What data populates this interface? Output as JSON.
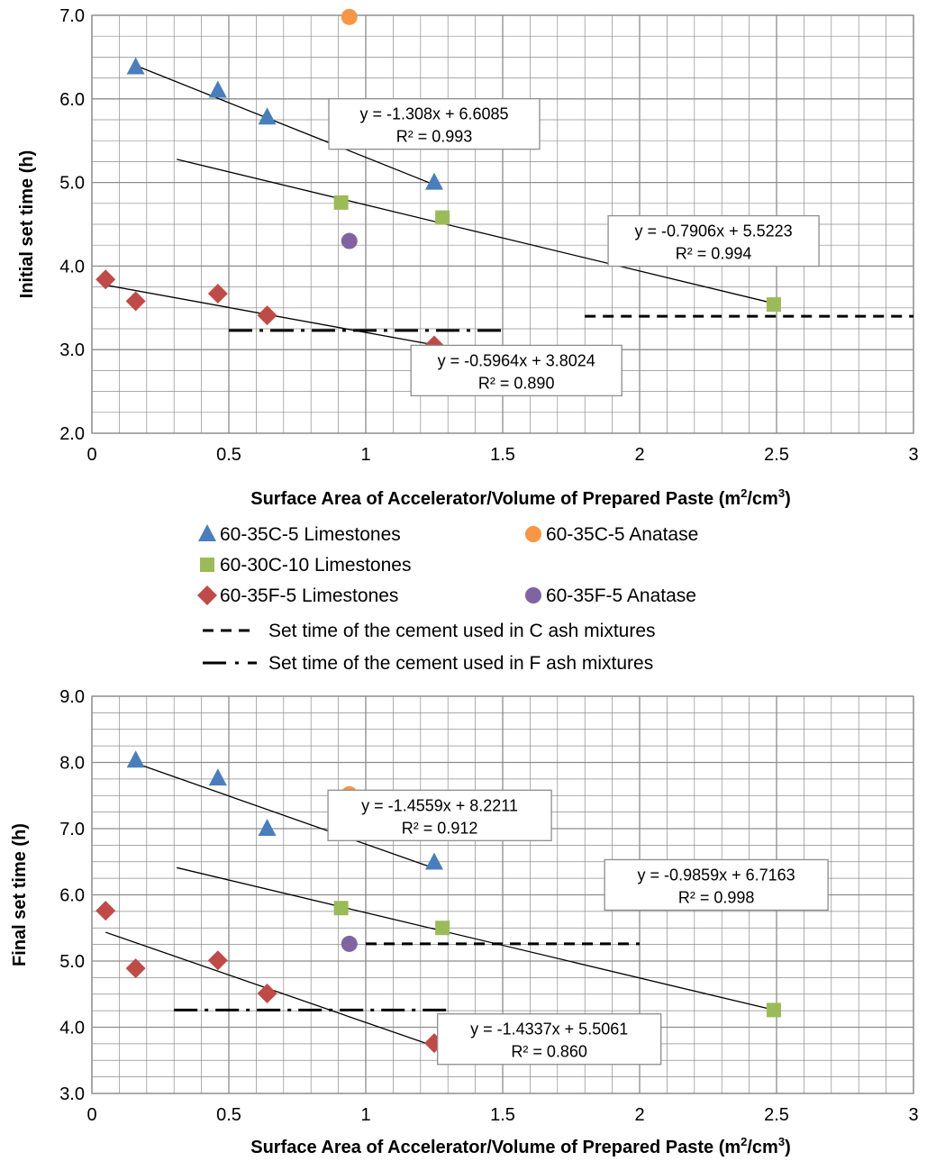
{
  "colors": {
    "blue_triangle": "#4a7ebb",
    "green_square": "#9bbb59",
    "red_diamond": "#be4b48",
    "orange_circle": "#f79646",
    "purple_circle": "#8064a2",
    "grid": "#8c8c8c",
    "trend": "#000000"
  },
  "legend": [
    {
      "label": "60-35C-5 Limestones",
      "marker": "triangle",
      "color": "#4a7ebb"
    },
    {
      "label": "60-35C-5 Anatase",
      "marker": "circle",
      "color": "#f79646"
    },
    {
      "label": "60-30C-10 Limestones",
      "marker": "square",
      "color": "#9bbb59"
    },
    {
      "label": "60-35F-5 Limestones",
      "marker": "diamond",
      "color": "#be4b48"
    },
    {
      "label": "60-35F-5 Anatase",
      "marker": "circle",
      "color": "#8064a2"
    },
    {
      "label": "Set time of the cement used in C ash mixtures",
      "marker": "dashed-line",
      "color": "#000000"
    },
    {
      "label": "Set time of the cement used in F ash mixtures",
      "marker": "dash-dot-line",
      "color": "#000000"
    }
  ],
  "chart_data": [
    {
      "type": "scatter",
      "ylabel": "Initial set time (h)",
      "xlabel_main": "Surface Area of Accelerator/Volume of Prepared Paste (m",
      "xlabel_sup1": "2",
      "xlabel_mid": "/cm",
      "xlabel_sup2": "3",
      "xlabel_end": ")",
      "xlim": [
        0,
        3
      ],
      "ylim": [
        2.0,
        7.0
      ],
      "xticks": [
        "0",
        "0.5",
        "1",
        "1.5",
        "2",
        "2.5",
        "3"
      ],
      "yticks": [
        "2.0",
        "3.0",
        "4.0",
        "5.0",
        "6.0",
        "7.0"
      ],
      "grid": true,
      "series": [
        {
          "name": "60-35C-5 Limestones",
          "marker": "triangle",
          "color": "#4a7ebb",
          "points": [
            [
              0.16,
              6.38
            ],
            [
              0.46,
              6.1
            ],
            [
              0.64,
              5.78
            ],
            [
              1.25,
              5.0
            ]
          ]
        },
        {
          "name": "60-35C-5 Anatase",
          "marker": "circle",
          "color": "#f79646",
          "points": [
            [
              0.94,
              6.98
            ]
          ]
        },
        {
          "name": "60-30C-10 Limestones",
          "marker": "square",
          "color": "#9bbb59",
          "points": [
            [
              0.91,
              4.76
            ],
            [
              1.28,
              4.58
            ],
            [
              2.49,
              3.54
            ]
          ]
        },
        {
          "name": "60-35F-5 Limestones",
          "marker": "diamond",
          "color": "#be4b48",
          "points": [
            [
              0.05,
              3.84
            ],
            [
              0.16,
              3.58
            ],
            [
              0.46,
              3.67
            ],
            [
              0.64,
              3.41
            ],
            [
              1.25,
              3.05
            ]
          ]
        },
        {
          "name": "60-35F-5 Anatase",
          "marker": "circle",
          "color": "#8064a2",
          "points": [
            [
              0.94,
              4.3
            ]
          ]
        }
      ],
      "trendlines": [
        {
          "slope": -1.308,
          "intercept": 6.6085,
          "x_range": [
            0.16,
            1.25
          ],
          "eq": "y = -1.308x + 6.6085",
          "r2": "R² = 0.993",
          "box_at": [
            1.25,
            5.7
          ]
        },
        {
          "slope": -0.7906,
          "intercept": 5.5223,
          "x_range": [
            0.31,
            2.49
          ],
          "eq": "y = -0.7906x + 5.5223",
          "r2": "R² = 0.994",
          "box_at": [
            2.27,
            4.3
          ]
        },
        {
          "slope": -0.5964,
          "intercept": 3.8024,
          "x_range": [
            0.05,
            1.25
          ],
          "eq": "y = -0.5964x + 3.8024",
          "r2": "R² = 0.890",
          "box_at": [
            1.55,
            2.75
          ]
        }
      ],
      "reference_lines": [
        {
          "name": "Set time of the cement used in C ash mixtures",
          "style": "dashed",
          "y": 3.4,
          "x_range": [
            1.8,
            3.0
          ]
        },
        {
          "name": "Set time of the cement used in F ash mixtures",
          "style": "dash-dot",
          "y": 3.23,
          "x_range": [
            0.5,
            1.5
          ]
        }
      ]
    },
    {
      "type": "scatter",
      "ylabel": "Final set time (h)",
      "xlabel_main": "Surface Area of Accelerator/Volume of Prepared Paste (m",
      "xlabel_sup1": "2",
      "xlabel_mid": "/cm",
      "xlabel_sup2": "3",
      "xlabel_end": ")",
      "xlim": [
        0,
        3
      ],
      "ylim": [
        3.0,
        9.0
      ],
      "xticks": [
        "0",
        "0.5",
        "1",
        "1.5",
        "2",
        "2.5",
        "3"
      ],
      "yticks": [
        "3.0",
        "4.0",
        "5.0",
        "6.0",
        "7.0",
        "8.0",
        "9.0"
      ],
      "grid": true,
      "series": [
        {
          "name": "60-35C-5 Limestones",
          "marker": "triangle",
          "color": "#4a7ebb",
          "points": [
            [
              0.16,
              8.03
            ],
            [
              0.46,
              7.76
            ],
            [
              0.64,
              7.0
            ],
            [
              1.25,
              6.49
            ]
          ]
        },
        {
          "name": "60-35C-5 Anatase",
          "marker": "circle",
          "color": "#f79646",
          "points": [
            [
              0.94,
              7.52
            ]
          ]
        },
        {
          "name": "60-30C-10 Limestones",
          "marker": "square",
          "color": "#9bbb59",
          "points": [
            [
              0.91,
              5.8
            ],
            [
              1.28,
              5.5
            ],
            [
              2.49,
              4.26
            ]
          ]
        },
        {
          "name": "60-35F-5 Limestones",
          "marker": "diamond",
          "color": "#be4b48",
          "points": [
            [
              0.05,
              5.76
            ],
            [
              0.16,
              4.89
            ],
            [
              0.46,
              5.01
            ],
            [
              0.64,
              4.51
            ],
            [
              1.25,
              3.76
            ]
          ]
        },
        {
          "name": "60-35F-5 Anatase",
          "marker": "circle",
          "color": "#8064a2",
          "points": [
            [
              0.94,
              5.26
            ]
          ]
        }
      ],
      "trendlines": [
        {
          "slope": -1.4559,
          "intercept": 8.2211,
          "x_range": [
            0.16,
            1.25
          ],
          "eq": "y = -1.4559x + 8.2211",
          "r2": "R² = 0.912",
          "box_at": [
            1.27,
            7.2
          ]
        },
        {
          "slope": -0.9859,
          "intercept": 6.7163,
          "x_range": [
            0.31,
            2.49
          ],
          "eq": "y = -0.9859x + 6.7163",
          "r2": "R² = 0.998",
          "box_at": [
            2.28,
            6.15
          ]
        },
        {
          "slope": -1.4337,
          "intercept": 5.5061,
          "x_range": [
            0.05,
            1.25
          ],
          "eq": "y = -1.4337x + 5.5061",
          "r2": "R² = 0.860",
          "box_at": [
            1.67,
            3.82
          ]
        }
      ],
      "reference_lines": [
        {
          "name": "Set time of the cement used in C ash mixtures",
          "style": "dashed",
          "y": 5.26,
          "x_range": [
            1.0,
            2.0
          ]
        },
        {
          "name": "Set time of the cement used in F ash mixtures",
          "style": "dash-dot",
          "y": 4.26,
          "x_range": [
            0.3,
            1.3
          ]
        }
      ]
    }
  ]
}
